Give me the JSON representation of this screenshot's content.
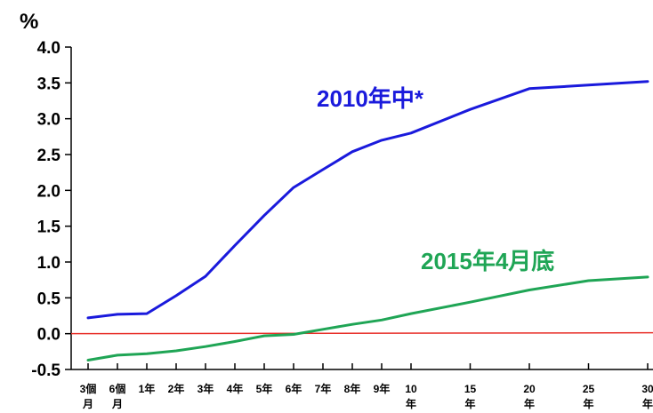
{
  "chart_data": {
    "type": "line",
    "ylabel": "%",
    "ylim": [
      -0.5,
      4.0
    ],
    "yticks": [
      "4.0",
      "3.5",
      "3.0",
      "2.5",
      "2.0",
      "1.5",
      "1.0",
      "0.5",
      "0.0",
      "-0.5"
    ],
    "ytick_values": [
      4.0,
      3.5,
      3.0,
      2.5,
      2.0,
      1.5,
      1.0,
      0.5,
      0.0,
      -0.5
    ],
    "x_months": [
      3,
      6,
      12,
      24,
      36,
      48,
      60,
      72,
      84,
      96,
      108,
      120,
      180,
      240,
      300,
      360
    ],
    "x_labels": [
      [
        "3個",
        "月"
      ],
      [
        "6個",
        "月"
      ],
      [
        "1年"
      ],
      [
        "2年"
      ],
      [
        "3年"
      ],
      [
        "4年"
      ],
      [
        "5年"
      ],
      [
        "6年"
      ],
      [
        "7年"
      ],
      [
        "8年"
      ],
      [
        "9年"
      ],
      [
        "10",
        "年"
      ],
      [
        "15",
        "年"
      ],
      [
        "20",
        "年"
      ],
      [
        "25",
        "年"
      ],
      [
        "30",
        "年"
      ]
    ],
    "reference_line": {
      "value": 0.0,
      "color": "#e8302a"
    },
    "series": [
      {
        "name": "2010年中*",
        "color": "#1a1adc",
        "values": [
          0.22,
          0.27,
          0.28,
          0.53,
          0.8,
          1.23,
          1.65,
          2.04,
          2.29,
          2.54,
          2.7,
          2.8,
          3.13,
          3.42,
          3.47,
          3.52
        ]
      },
      {
        "name": "2015年4月底",
        "color": "#1fa555",
        "values": [
          -0.37,
          -0.3,
          -0.28,
          -0.24,
          -0.18,
          -0.11,
          -0.03,
          -0.01,
          0.06,
          0.13,
          0.19,
          0.28,
          0.44,
          0.61,
          0.74,
          0.79
        ]
      }
    ]
  }
}
